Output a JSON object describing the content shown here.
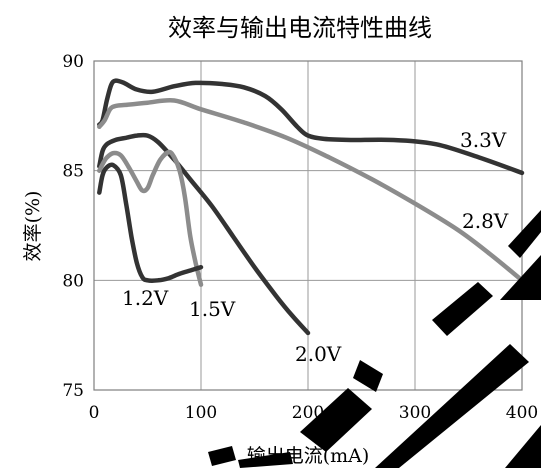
{
  "chart_data": {
    "type": "line",
    "title": "效率与输出电流特性曲线",
    "xlabel": "输出电流(mA)",
    "ylabel": "效率(%)",
    "xlim": [
      0,
      400
    ],
    "ylim": [
      75,
      90
    ],
    "xticks": [
      0,
      100,
      200,
      300,
      400
    ],
    "yticks": [
      75,
      80,
      85,
      90
    ],
    "grid": true,
    "legend": "labels beside curves",
    "series": [
      {
        "name": "3.3V",
        "color": "#333333",
        "x": [
          5,
          8,
          12,
          16,
          20,
          28,
          40,
          55,
          75,
          95,
          120,
          140,
          160,
          175,
          190,
          200,
          215,
          240,
          280,
          320,
          360,
          400
        ],
        "y": [
          87.1,
          87.3,
          88.2,
          88.9,
          89.1,
          89.0,
          88.7,
          88.6,
          88.85,
          89.0,
          88.95,
          88.8,
          88.4,
          87.8,
          87.0,
          86.6,
          86.45,
          86.4,
          86.4,
          86.2,
          85.6,
          84.9
        ]
      },
      {
        "name": "2.8V",
        "color": "#8c8c8c",
        "x": [
          5,
          10,
          15,
          20,
          30,
          50,
          75,
          100,
          140,
          180,
          220,
          260,
          300,
          340,
          370,
          400
        ],
        "y": [
          87.0,
          87.3,
          87.8,
          87.95,
          88.0,
          88.1,
          88.2,
          87.8,
          87.2,
          86.5,
          85.6,
          84.6,
          83.5,
          82.3,
          81.2,
          80.0
        ]
      },
      {
        "name": "2.0V",
        "color": "#333333",
        "x": [
          5,
          8,
          12,
          20,
          30,
          40,
          50,
          60,
          75,
          90,
          110,
          130,
          150,
          170,
          185,
          200
        ],
        "y": [
          85.2,
          85.9,
          86.2,
          86.4,
          86.5,
          86.6,
          86.6,
          86.3,
          85.5,
          84.6,
          83.4,
          82.0,
          80.6,
          79.3,
          78.4,
          77.6
        ]
      },
      {
        "name": "1.5V",
        "color": "#8c8c8c",
        "x": [
          5,
          8,
          12,
          18,
          25,
          32,
          40,
          45,
          50,
          55,
          62,
          70,
          75,
          80,
          85,
          90,
          95,
          100
        ],
        "y": [
          85.0,
          85.3,
          85.6,
          85.8,
          85.7,
          85.2,
          84.5,
          84.1,
          84.2,
          84.8,
          85.5,
          85.85,
          85.6,
          85.0,
          83.8,
          82.0,
          80.8,
          79.8
        ]
      },
      {
        "name": "1.2V",
        "color": "#333333",
        "x": [
          5,
          8,
          12,
          18,
          25,
          30,
          35,
          40,
          45,
          50,
          60,
          70,
          80,
          90,
          100
        ],
        "y": [
          84.0,
          84.8,
          85.15,
          85.25,
          84.8,
          83.5,
          82.0,
          80.8,
          80.15,
          80.0,
          80.0,
          80.1,
          80.3,
          80.45,
          80.6
        ]
      }
    ]
  }
}
